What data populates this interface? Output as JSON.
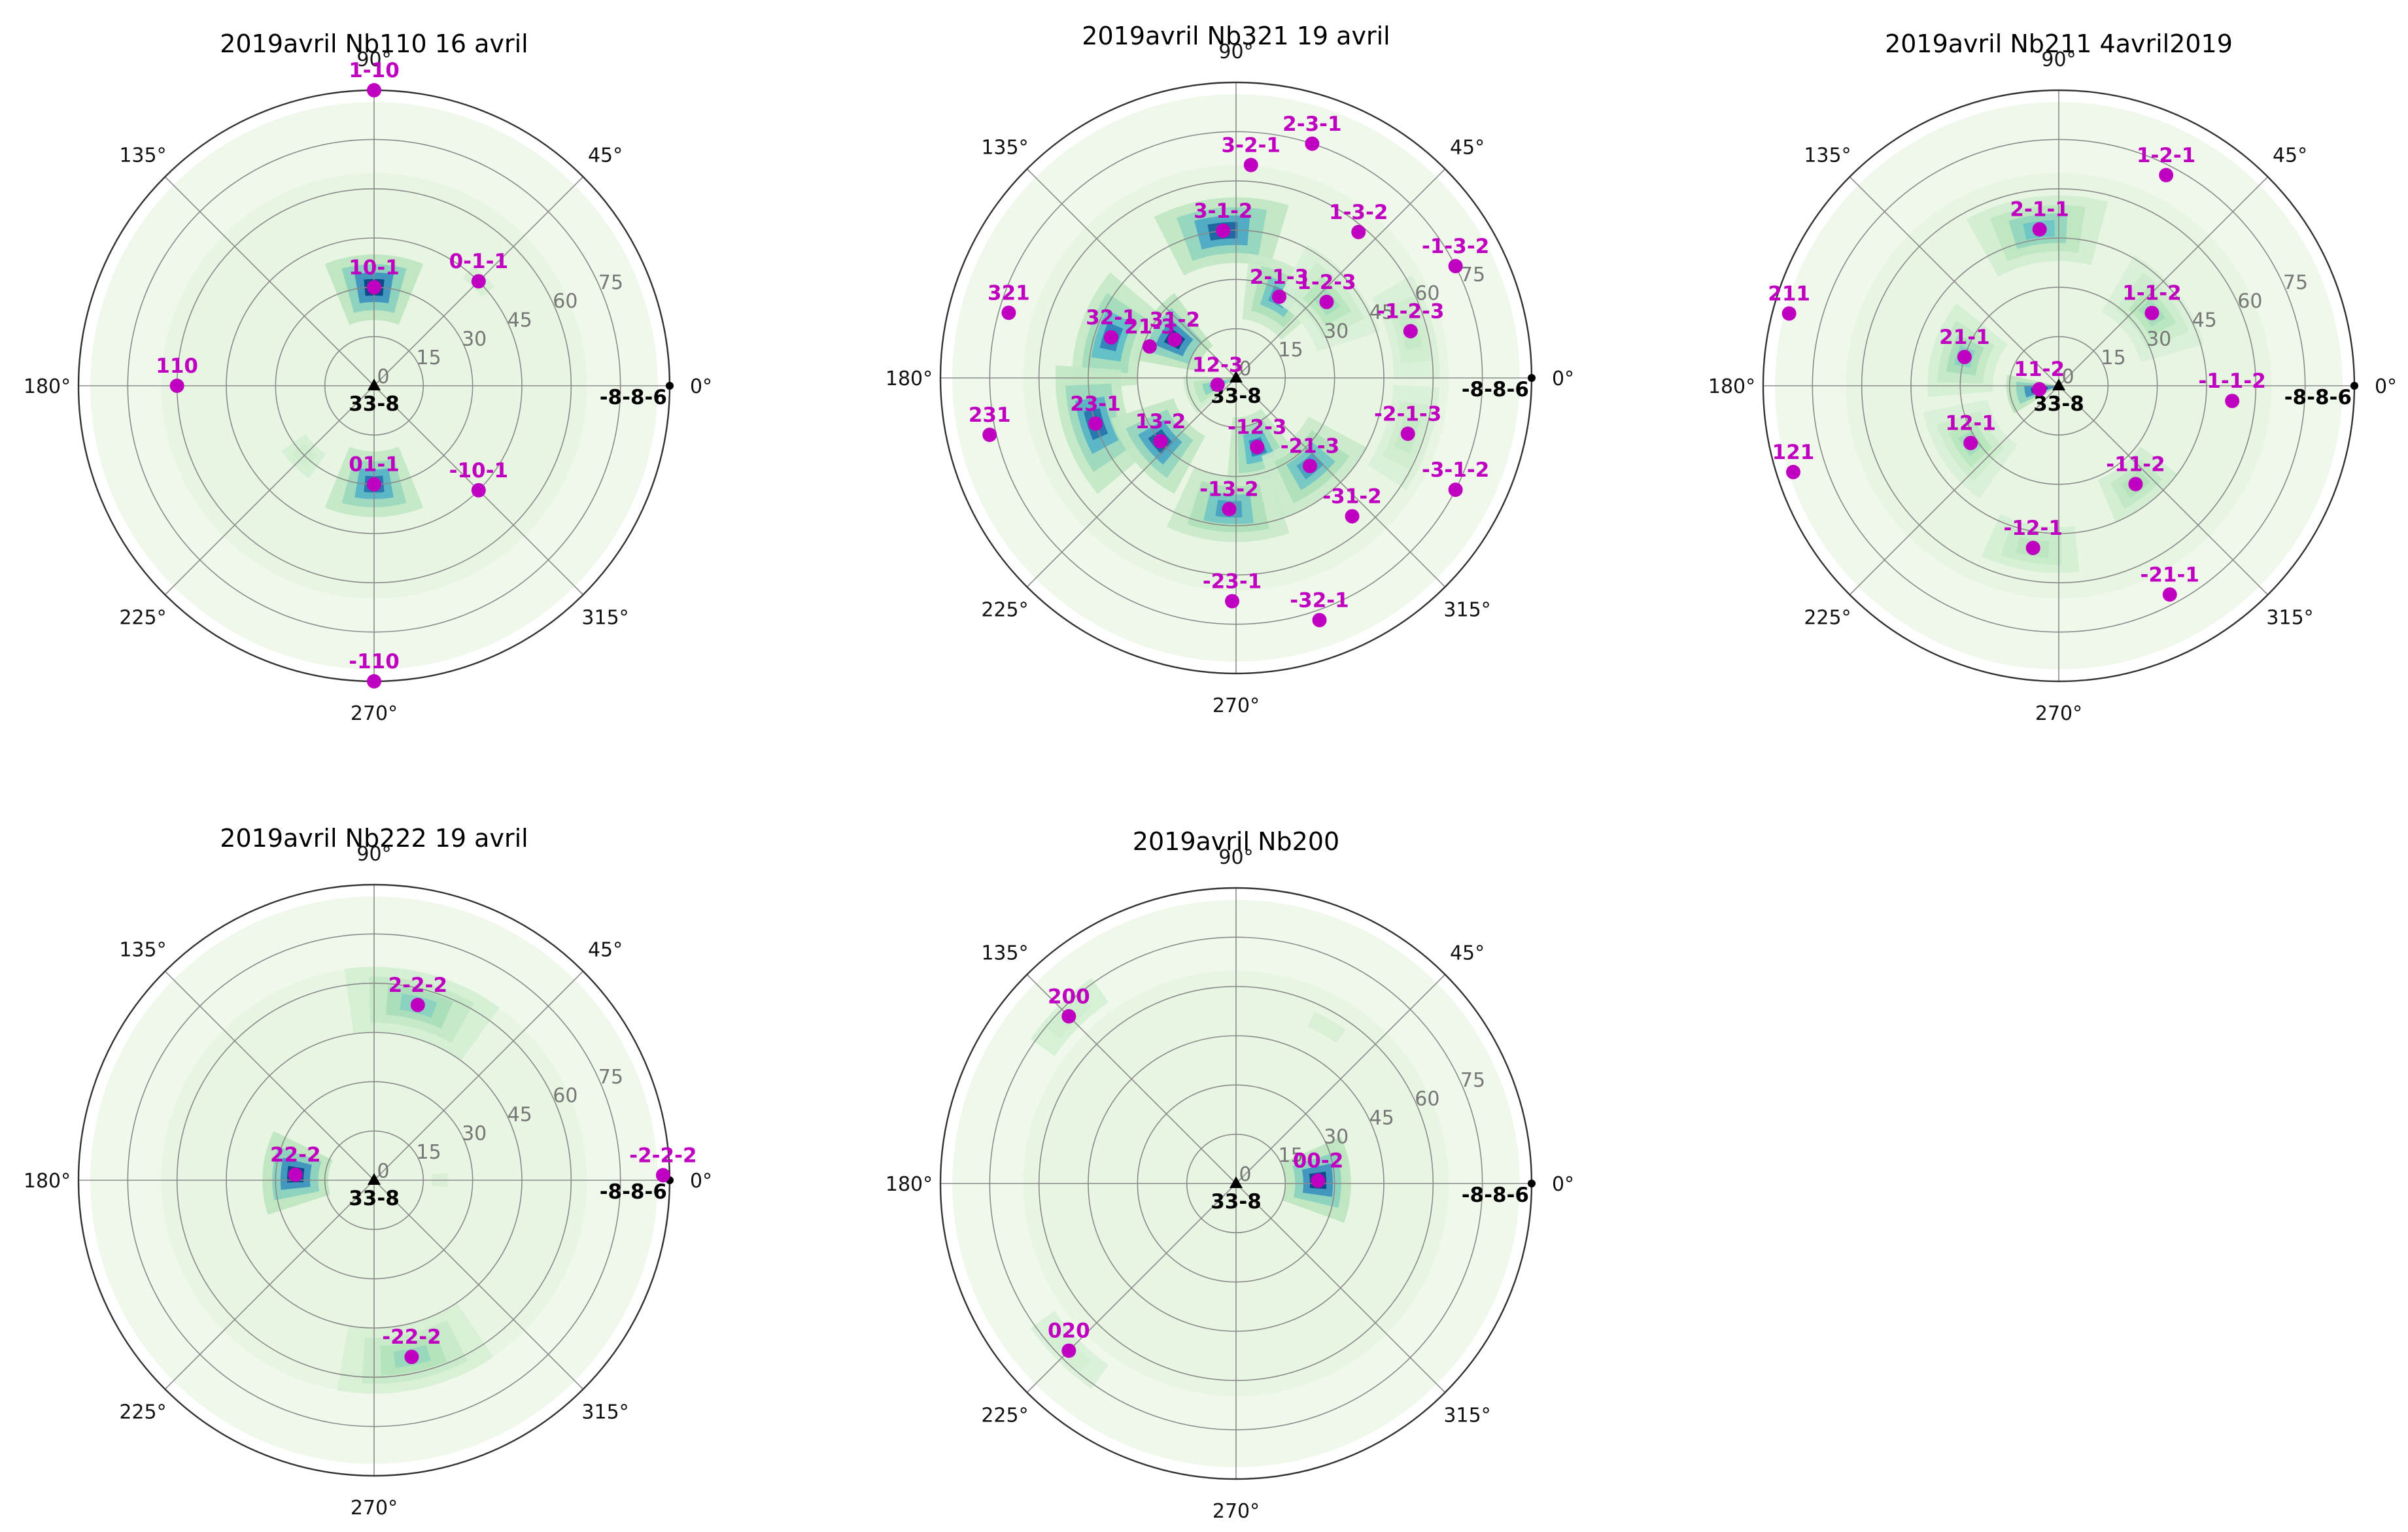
{
  "chart_data": [
    {
      "type": "polar-histogram",
      "title": "2019avril  Nb110 16 avril",
      "theta_ticks": [
        "0°",
        "45°",
        "90°",
        "135°",
        "180°",
        "225°",
        "270°",
        "315°"
      ],
      "r_ticks": [
        "0",
        "15",
        "30",
        "45",
        "60",
        "75"
      ],
      "rlim": [
        0,
        90
      ],
      "center_label": "33-8",
      "edge_label": "-8-8-6",
      "poles": [
        {
          "label": "1-10",
          "theta": 90,
          "r": 90
        },
        {
          "label": "0-1-1",
          "theta": 45,
          "r": 45
        },
        {
          "label": "10-1",
          "theta": 90,
          "r": 30
        },
        {
          "label": "110",
          "theta": 180,
          "r": 60
        },
        {
          "label": "01-1",
          "theta": 270,
          "r": 30
        },
        {
          "label": "-10-1",
          "theta": 315,
          "r": 45
        },
        {
          "label": "-110",
          "theta": 270,
          "r": 90
        }
      ],
      "density": [
        {
          "theta": 90,
          "r": 30,
          "level": 1.0
        },
        {
          "theta": 270,
          "r": 30,
          "level": 0.85
        },
        {
          "theta": 225,
          "r": 30,
          "level": 0.15
        },
        {
          "theta": 45,
          "r": 45,
          "level": 0.1
        }
      ]
    },
    {
      "type": "polar-histogram",
      "title": "2019avril  Nb321 19 avril",
      "theta_ticks": [
        "0°",
        "45°",
        "90°",
        "135°",
        "180°",
        "225°",
        "270°",
        "315°"
      ],
      "r_ticks": [
        "0",
        "15",
        "30",
        "45",
        "60",
        "75"
      ],
      "rlim": [
        0,
        90
      ],
      "center_label": "33-8",
      "edge_label": "-8-8-6",
      "poles": [
        {
          "label": "2-3-1",
          "theta": 72,
          "r": 75
        },
        {
          "label": "3-2-1",
          "theta": 86,
          "r": 65
        },
        {
          "label": "1-3-2",
          "theta": 50,
          "r": 58
        },
        {
          "label": "-1-3-2",
          "theta": 27,
          "r": 75
        },
        {
          "label": "3-1-2",
          "theta": 95,
          "r": 45
        },
        {
          "label": "1-2-3",
          "theta": 40,
          "r": 36
        },
        {
          "label": "2-1-3",
          "theta": 62,
          "r": 28
        },
        {
          "label": "-1-2-3",
          "theta": 15,
          "r": 55
        },
        {
          "label": "31-2",
          "theta": 148,
          "r": 22
        },
        {
          "label": "21-3",
          "theta": 160,
          "r": 28
        },
        {
          "label": "321",
          "theta": 164,
          "r": 72
        },
        {
          "label": "32-1",
          "theta": 162,
          "r": 40
        },
        {
          "label": "12-3",
          "theta": 200,
          "r": 6
        },
        {
          "label": "231",
          "theta": 193,
          "r": 77
        },
        {
          "label": "23-1",
          "theta": 198,
          "r": 45
        },
        {
          "label": "13-2",
          "theta": 220,
          "r": 30
        },
        {
          "label": "-2-1-3",
          "theta": 342,
          "r": 55
        },
        {
          "label": "-3-1-2",
          "theta": 333,
          "r": 75
        },
        {
          "label": "-12-3",
          "theta": 287,
          "r": 22
        },
        {
          "label": "-21-3",
          "theta": 310,
          "r": 35
        },
        {
          "label": "-13-2",
          "theta": 267,
          "r": 40
        },
        {
          "label": "-31-2",
          "theta": 310,
          "r": 55
        },
        {
          "label": "-23-1",
          "theta": 269,
          "r": 68
        },
        {
          "label": "-32-1",
          "theta": 289,
          "r": 78
        }
      ],
      "density": [
        {
          "theta": 95,
          "r": 45,
          "level": 0.9
        },
        {
          "theta": 62,
          "r": 28,
          "level": 0.7
        },
        {
          "theta": 148,
          "r": 22,
          "level": 1.0
        },
        {
          "theta": 162,
          "r": 40,
          "level": 0.8
        },
        {
          "theta": 198,
          "r": 45,
          "level": 0.85
        },
        {
          "theta": 220,
          "r": 30,
          "level": 0.9
        },
        {
          "theta": 287,
          "r": 22,
          "level": 0.8
        },
        {
          "theta": 310,
          "r": 35,
          "level": 0.7
        },
        {
          "theta": 267,
          "r": 40,
          "level": 0.7
        },
        {
          "theta": 40,
          "r": 36,
          "level": 0.35
        },
        {
          "theta": 15,
          "r": 55,
          "level": 0.2
        },
        {
          "theta": 342,
          "r": 55,
          "level": 0.2
        },
        {
          "theta": 200,
          "r": 6,
          "level": 0.6
        }
      ]
    },
    {
      "type": "polar-histogram",
      "title": "2019avril  Nb211 4avril2019",
      "theta_ticks": [
        "0°",
        "45°",
        "90°",
        "135°",
        "180°",
        "225°",
        "270°",
        "315°"
      ],
      "r_ticks": [
        "0",
        "15",
        "30",
        "45",
        "60",
        "75"
      ],
      "rlim": [
        0,
        90
      ],
      "center_label": "33-8",
      "edge_label": "-8-8-6",
      "poles": [
        {
          "label": "1-2-1",
          "theta": 63,
          "r": 72
        },
        {
          "label": "2-1-1",
          "theta": 97,
          "r": 48
        },
        {
          "label": "1-1-2",
          "theta": 38,
          "r": 36
        },
        {
          "label": "211",
          "theta": 165,
          "r": 85
        },
        {
          "label": "21-1",
          "theta": 163,
          "r": 30
        },
        {
          "label": "11-2",
          "theta": 190,
          "r": 6
        },
        {
          "label": "-1-1-2",
          "theta": 355,
          "r": 53
        },
        {
          "label": "121",
          "theta": 198,
          "r": 85
        },
        {
          "label": "12-1",
          "theta": 213,
          "r": 32
        },
        {
          "label": "-11-2",
          "theta": 308,
          "r": 38
        },
        {
          "label": "-12-1",
          "theta": 261,
          "r": 50
        },
        {
          "label": "-21-1",
          "theta": 298,
          "r": 72
        }
      ],
      "density": [
        {
          "theta": 190,
          "r": 6,
          "level": 1.0
        },
        {
          "theta": 97,
          "r": 48,
          "level": 0.55
        },
        {
          "theta": 163,
          "r": 30,
          "level": 0.45
        },
        {
          "theta": 38,
          "r": 36,
          "level": 0.35
        },
        {
          "theta": 213,
          "r": 32,
          "level": 0.35
        },
        {
          "theta": 308,
          "r": 38,
          "level": 0.3
        },
        {
          "theta": 261,
          "r": 50,
          "level": 0.25
        }
      ]
    },
    {
      "type": "polar-histogram",
      "title": "2019avril  Nb222 19 avril",
      "theta_ticks": [
        "0°",
        "45°",
        "90°",
        "135°",
        "180°",
        "225°",
        "270°",
        "315°"
      ],
      "r_ticks": [
        "0",
        "15",
        "30",
        "45",
        "60",
        "75"
      ],
      "rlim": [
        0,
        90
      ],
      "center_label": "33-8",
      "edge_label": "-8-8-6",
      "poles": [
        {
          "label": "2-2-2",
          "theta": 76,
          "r": 55
        },
        {
          "label": "22-2",
          "theta": 176,
          "r": 24
        },
        {
          "label": "-2-2-2",
          "theta": 1,
          "r": 88
        },
        {
          "label": "-22-2",
          "theta": 282,
          "r": 55
        }
      ],
      "density": [
        {
          "theta": 176,
          "r": 24,
          "level": 1.0
        },
        {
          "theta": 76,
          "r": 55,
          "level": 0.45
        },
        {
          "theta": 282,
          "r": 55,
          "level": 0.4
        },
        {
          "theta": 0,
          "r": 20,
          "level": 0.1
        }
      ]
    },
    {
      "type": "polar-histogram",
      "title": "2019avril  Nb200",
      "theta_ticks": [
        "0°",
        "45°",
        "90°",
        "135°",
        "180°",
        "225°",
        "270°",
        "315°"
      ],
      "r_ticks": [
        "0",
        "15",
        "30",
        "45",
        "60",
        "75"
      ],
      "rlim": [
        0,
        90
      ],
      "center_label": "33-8",
      "edge_label": "-8-8-6",
      "poles": [
        {
          "label": "200",
          "theta": 135,
          "r": 72
        },
        {
          "label": "00-2",
          "theta": 2,
          "r": 25
        },
        {
          "label": "020",
          "theta": 225,
          "r": 72
        }
      ],
      "density": [
        {
          "theta": 2,
          "r": 25,
          "level": 1.0
        },
        {
          "theta": 135,
          "r": 72,
          "level": 0.15
        },
        {
          "theta": 225,
          "r": 72,
          "level": 0.12
        },
        {
          "theta": 60,
          "r": 55,
          "level": 0.1
        }
      ]
    }
  ]
}
